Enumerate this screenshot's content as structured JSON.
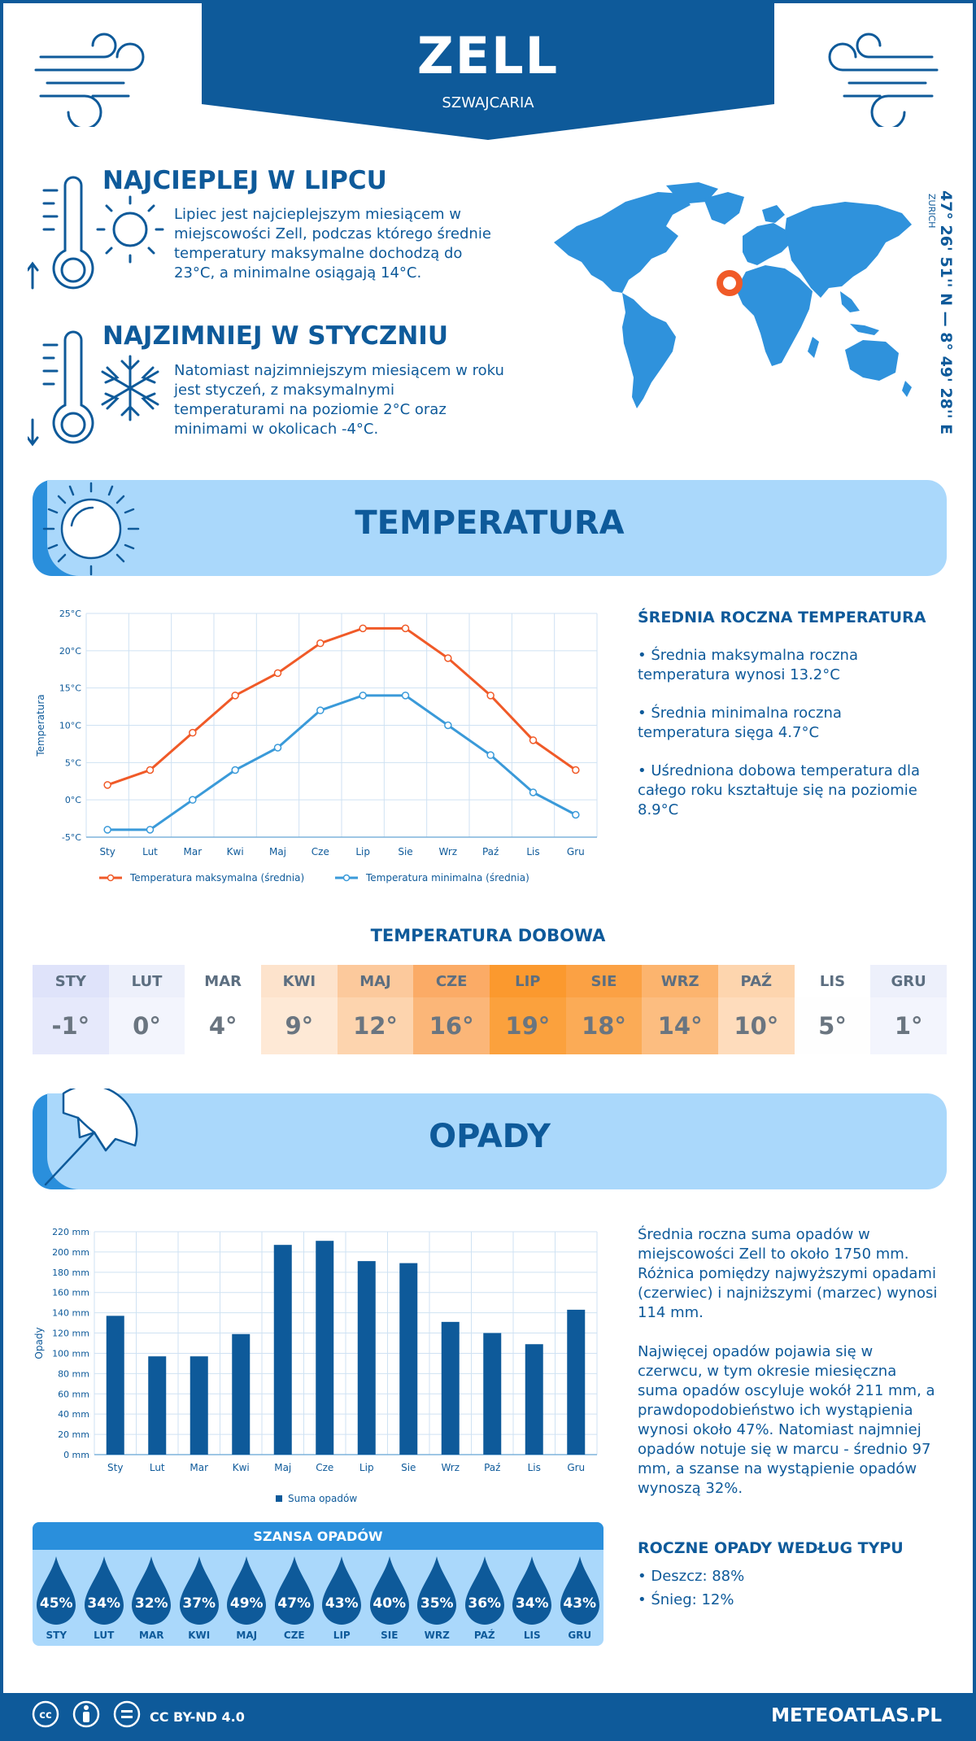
{
  "header": {
    "city": "ZELL",
    "country": "SZWAJCARIA"
  },
  "warmest": {
    "title": "NAJCIEPLEJ W LIPCU",
    "text": "Lipiec jest najcieplejszym miesiącem w miejscowości Zell, podczas którego średnie temperatury maksymalne dochodzą do 23°C, a minimalne osiągają 14°C."
  },
  "coldest": {
    "title": "NAJZIMNIEJ W STYCZNIU",
    "text": "Natomiast najzimniejszym miesiącem w roku jest styczeń, z maksymalnymi temperaturami na poziomie 2°C oraz minimami w okolicach -4°C."
  },
  "location": {
    "coords": "47° 26' 51'' N — 8° 49' 28'' E",
    "region": "ZURICH"
  },
  "temperature_section": {
    "title": "TEMPERATURA",
    "summary_title": "ŚREDNIA ROCZNA TEMPERATURA",
    "bullets": [
      "• Średnia maksymalna roczna temperatura wynosi 13.2°C",
      "• Średnia minimalna roczna temperatura sięga 4.7°C",
      "• Uśredniona dobowa temperatura dla całego roku kształtuje się na poziomie 8.9°C"
    ]
  },
  "daily": {
    "title": "TEMPERATURA DOBOWA",
    "months": [
      "STY",
      "LUT",
      "MAR",
      "KWI",
      "MAJ",
      "CZE",
      "LIP",
      "SIE",
      "WRZ",
      "PAŹ",
      "LIS",
      "GRU"
    ],
    "values": [
      "-1°",
      "0°",
      "4°",
      "9°",
      "12°",
      "16°",
      "19°",
      "18°",
      "14°",
      "10°",
      "5°",
      "1°"
    ],
    "month_bg": [
      "#dfe3fa",
      "#edf0fb",
      "#ffffff",
      "#fde3cc",
      "#fcc99c",
      "#fbab66",
      "#fb992e",
      "#fba144",
      "#fcb46e",
      "#fdd5ae",
      "#ffffff",
      "#edf0fb"
    ],
    "value_bg": [
      "#e6e9fb",
      "#f3f5fd",
      "#ffffff",
      "#fee9d6",
      "#fdd4ae",
      "#fbb678",
      "#fba13d",
      "#fbab56",
      "#fcbd80",
      "#fedcbc",
      "#fefefe",
      "#f3f5fd"
    ]
  },
  "precip_section": {
    "title": "OPADY",
    "paragraph1": "Średnia roczna suma opadów w miejscowości Zell to około 1750 mm. Różnica pomiędzy najwyższymi opadami (czerwiec) i najniższymi (marzec) wynosi 114 mm.",
    "paragraph2": "Najwięcej opadów pojawia się w czerwcu, w tym okresie miesięczna suma opadów oscyluje wokół 211 mm, a prawdopodobieństwo ich wystąpienia wynosi około 47%. Natomiast najmniej opadów notuje się w marcu - średnio 97 mm, a szanse na wystąpienie opadów wynoszą 32%.",
    "types_title": "ROCZNE OPADY WEDŁUG TYPU",
    "types": [
      "• Deszcz: 88%",
      "• Śnieg: 12%"
    ]
  },
  "chance": {
    "title": "SZANSA OPADÓW",
    "months": [
      "STY",
      "LUT",
      "MAR",
      "KWI",
      "MAJ",
      "CZE",
      "LIP",
      "SIE",
      "WRZ",
      "PAŹ",
      "LIS",
      "GRU"
    ],
    "values": [
      "45%",
      "34%",
      "32%",
      "37%",
      "49%",
      "47%",
      "43%",
      "40%",
      "35%",
      "36%",
      "34%",
      "43%"
    ]
  },
  "footer": {
    "license": "CC BY-ND 4.0",
    "site": "METEOATLAS.PL"
  },
  "chart_data": [
    {
      "type": "line",
      "x": [
        "Sty",
        "Lut",
        "Mar",
        "Kwi",
        "Maj",
        "Cze",
        "Lip",
        "Sie",
        "Wrz",
        "Paź",
        "Lis",
        "Gru"
      ],
      "ylabel": "Temperatura",
      "ylim": [
        -5,
        25
      ],
      "yticks": [
        "-5°C",
        "0°C",
        "5°C",
        "10°C",
        "15°C",
        "20°C",
        "25°C"
      ],
      "grid": true,
      "legend": "bottom",
      "series": [
        {
          "name": "Temperatura maksymalna (średnia)",
          "color": "#f05a28",
          "values": [
            2,
            4,
            9,
            14,
            17,
            21,
            23,
            23,
            19,
            14,
            8,
            4
          ]
        },
        {
          "name": "Temperatura minimalna (średnia)",
          "color": "#3a9ad9",
          "values": [
            -4,
            -4,
            0,
            4,
            7,
            12,
            14,
            14,
            10,
            6,
            1,
            -2
          ]
        }
      ]
    },
    {
      "type": "bar",
      "categories": [
        "Sty",
        "Lut",
        "Mar",
        "Kwi",
        "Maj",
        "Cze",
        "Lip",
        "Sie",
        "Wrz",
        "Paź",
        "Lis",
        "Gru"
      ],
      "ylabel": "Opady",
      "ylim": [
        0,
        220
      ],
      "yticks": [
        "0 mm",
        "20 mm",
        "40 mm",
        "60 mm",
        "80 mm",
        "100 mm",
        "120 mm",
        "140 mm",
        "160 mm",
        "180 mm",
        "200 mm",
        "220 mm"
      ],
      "grid": true,
      "legend": "bottom",
      "series": [
        {
          "name": "Suma opadów",
          "color": "#0e5a9a",
          "values": [
            137,
            97,
            97,
            119,
            207,
            211,
            191,
            189,
            131,
            120,
            109,
            143
          ]
        }
      ]
    }
  ]
}
